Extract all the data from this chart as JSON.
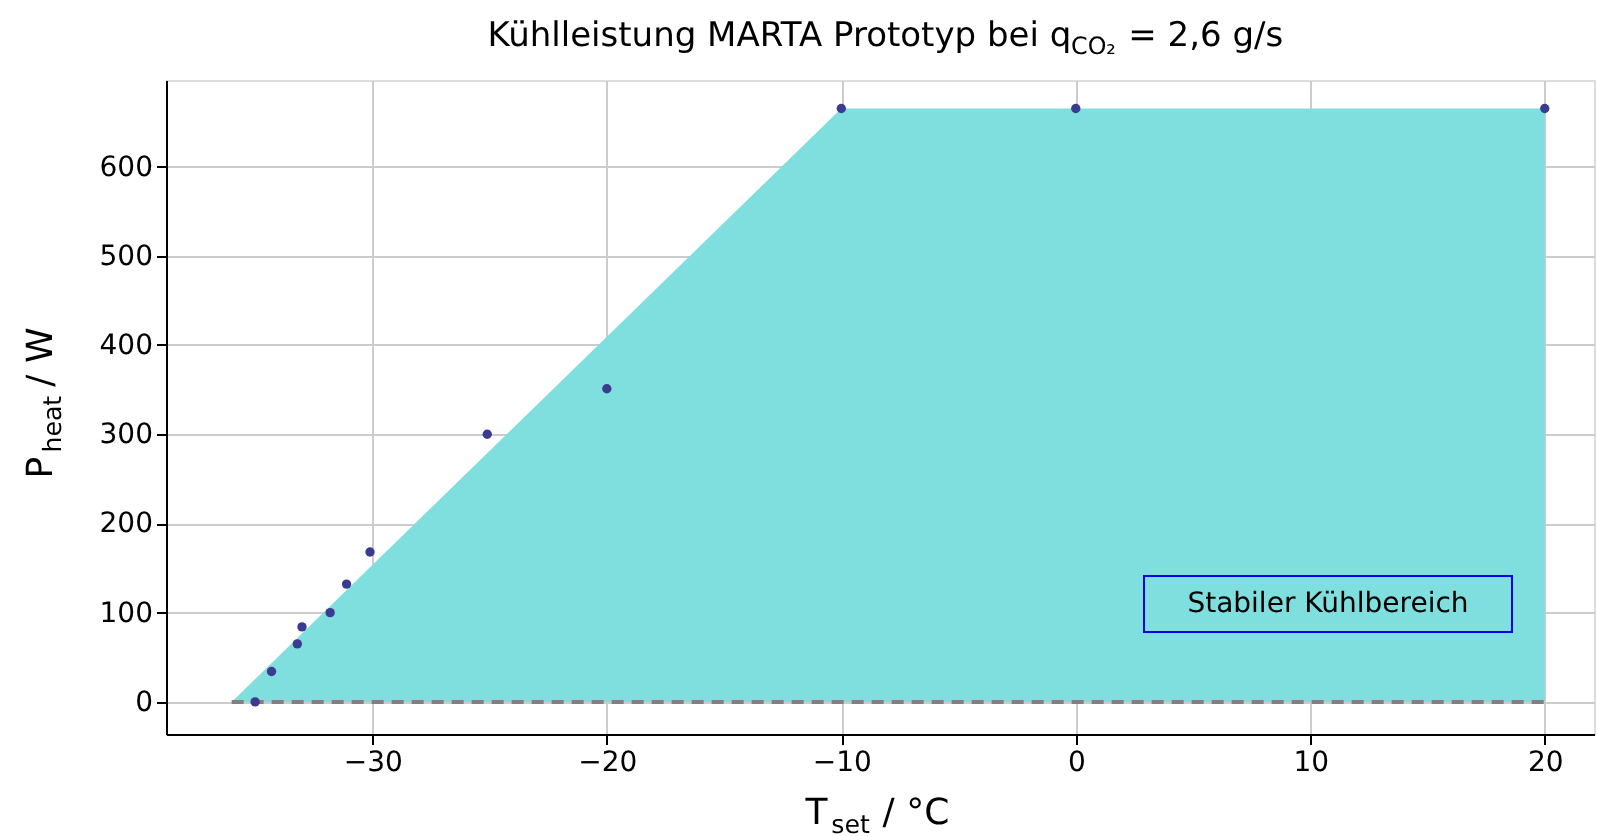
{
  "chart_data": {
    "type": "scatter",
    "title": "Kühlleistung MARTA Prototyp bei q$_{CO₂}$ = 2,6 g/s",
    "xlabel": "T$_{set}$ / °C",
    "ylabel": "P$_{heat}$ / W",
    "series": [
      {
        "type": "area",
        "x": [
          -36,
          -10,
          20
        ],
        "values": [
          0,
          665,
          665
        ],
        "color": "#7fdede"
      },
      {
        "type": "line",
        "x": [
          -36,
          20
        ],
        "values": [
          0,
          0
        ],
        "color": "#808080",
        "line_style": "dashed"
      },
      {
        "x": [
          -35,
          -34.3,
          -33.2,
          -33,
          -31.8,
          -31.1,
          -30.1,
          -25.1,
          -20,
          -10,
          0,
          20
        ],
        "values": [
          0,
          34,
          65,
          84,
          100,
          132,
          168,
          300,
          351,
          665,
          665,
          665
        ],
        "color": "#3a3d8f",
        "marker": "circle"
      }
    ],
    "annotations": [
      "Stabiler Kühlbereich"
    ],
    "xlim": [
      -38.8,
      22.1
    ],
    "ylim": [
      -36,
      697
    ],
    "xticks": [
      -30,
      -20,
      -10,
      0,
      10,
      20
    ],
    "yticks": [
      0,
      100,
      200,
      300,
      400,
      500,
      600
    ],
    "grid": true
  }
}
